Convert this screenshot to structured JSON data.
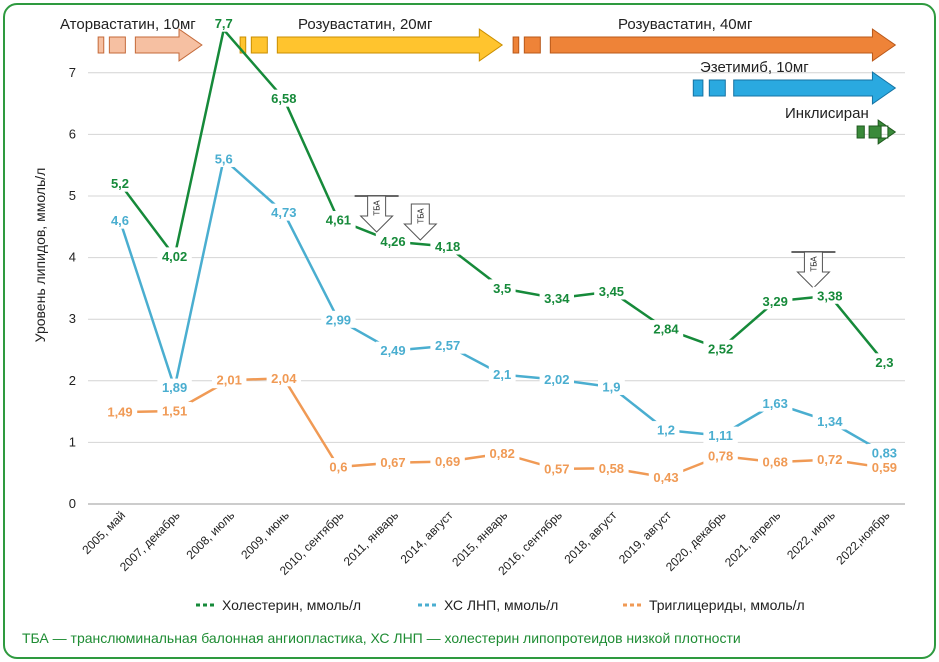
{
  "chart_data": {
    "type": "line",
    "ylabel": "Уровень липидов, ммоль/л",
    "ylim": [
      0,
      7.5
    ],
    "yticks": [
      0,
      1,
      2,
      3,
      4,
      5,
      6,
      7
    ],
    "grid": true,
    "legend_position": "bottom",
    "categories": [
      "2005, май",
      "2007, декабрь",
      "2008, июль",
      "2009, июнь",
      "2010, сентябрь",
      "2011, январь",
      "2014, август",
      "2015, январь",
      "2016, сентябрь",
      "2018, август",
      "2019, август",
      "2020, декабрь",
      "2021, апрель",
      "2022, июль",
      "2022,ноябрь"
    ],
    "series": [
      {
        "name": "Холестерин, ммоль/л",
        "color": "#168a3a",
        "points": [
          {
            "x": 0.0,
            "y": 5.2,
            "label": "5,2"
          },
          {
            "x": 1.0,
            "y": 4.02,
            "label": "4,02"
          },
          {
            "x": 1.9,
            "y": 7.7,
            "label": "7,7"
          },
          {
            "x": 3.0,
            "y": 6.58,
            "label": "6,58"
          },
          {
            "x": 4.0,
            "y": 4.61,
            "label": "4,61"
          },
          {
            "x": 5.0,
            "y": 4.26,
            "label": "4,26"
          },
          {
            "x": 6.0,
            "y": 4.18,
            "label": "4,18"
          },
          {
            "x": 7.0,
            "y": 3.5,
            "label": "3,5"
          },
          {
            "x": 8.0,
            "y": 3.34,
            "label": "3,34"
          },
          {
            "x": 9.0,
            "y": 3.45,
            "label": "3,45"
          },
          {
            "x": 10.0,
            "y": 2.84,
            "label": "2,84"
          },
          {
            "x": 11.0,
            "y": 2.52,
            "label": "2,52"
          },
          {
            "x": 12.0,
            "y": 3.29,
            "label": "3,29"
          },
          {
            "x": 13.0,
            "y": 3.38,
            "label": "3,38"
          },
          {
            "x": 14.0,
            "y": 2.3,
            "label": "2,3"
          }
        ]
      },
      {
        "name": "ХС ЛНП, ммоль/л",
        "color": "#4aaed0",
        "points": [
          {
            "x": 0.0,
            "y": 4.6,
            "label": "4,6"
          },
          {
            "x": 1.0,
            "y": 1.89,
            "label": "1,89"
          },
          {
            "x": 1.9,
            "y": 5.6,
            "label": "5,6"
          },
          {
            "x": 3.0,
            "y": 4.73,
            "label": "4,73"
          },
          {
            "x": 4.0,
            "y": 2.99,
            "label": "2,99"
          },
          {
            "x": 5.0,
            "y": 2.49,
            "label": "2,49"
          },
          {
            "x": 6.0,
            "y": 2.57,
            "label": "2,57"
          },
          {
            "x": 7.0,
            "y": 2.1,
            "label": "2,1"
          },
          {
            "x": 8.0,
            "y": 2.02,
            "label": "2,02"
          },
          {
            "x": 9.0,
            "y": 1.9,
            "label": "1,9"
          },
          {
            "x": 10.0,
            "y": 1.2,
            "label": "1,2"
          },
          {
            "x": 11.0,
            "y": 1.11,
            "label": "1,11"
          },
          {
            "x": 12.0,
            "y": 1.63,
            "label": "1,63"
          },
          {
            "x": 13.0,
            "y": 1.34,
            "label": "1,34"
          },
          {
            "x": 14.0,
            "y": 0.83,
            "label": "0,83"
          }
        ]
      },
      {
        "name": "Триглицериды, ммоль/л",
        "color": "#f09a55",
        "points": [
          {
            "x": 0.0,
            "y": 1.49,
            "label": "1,49"
          },
          {
            "x": 1.0,
            "y": 1.51,
            "label": "1,51"
          },
          {
            "x": 2.0,
            "y": 2.01,
            "label": "2,01"
          },
          {
            "x": 3.0,
            "y": 2.04,
            "label": "2,04"
          },
          {
            "x": 4.0,
            "y": 0.6,
            "label": "0,6"
          },
          {
            "x": 5.0,
            "y": 0.67,
            "label": "0,67"
          },
          {
            "x": 6.0,
            "y": 0.69,
            "label": "0,69"
          },
          {
            "x": 7.0,
            "y": 0.82,
            "label": "0,82"
          },
          {
            "x": 8.0,
            "y": 0.57,
            "label": "0,57"
          },
          {
            "x": 9.0,
            "y": 0.58,
            "label": "0,58"
          },
          {
            "x": 10.0,
            "y": 0.43,
            "label": "0,43"
          },
          {
            "x": 11.0,
            "y": 0.78,
            "label": "0,78"
          },
          {
            "x": 12.0,
            "y": 0.68,
            "label": "0,68"
          },
          {
            "x": 13.0,
            "y": 0.72,
            "label": "0,72"
          },
          {
            "x": 14.0,
            "y": 0.59,
            "label": "0,59"
          }
        ]
      }
    ],
    "therapy_arrows": [
      {
        "label": "Аторвастатин, 10мг",
        "fill": "#f6c0a2",
        "stroke": "#c46a3a",
        "x_start": -0.4,
        "x_end": 1.5,
        "row": 0
      },
      {
        "label": "Розувастатин, 20мг",
        "fill": "#ffc42e",
        "stroke": "#c98e00",
        "x_start": 2.2,
        "x_end": 7.0,
        "row": 0
      },
      {
        "label": "Розувастатин, 40мг",
        "fill": "#ee8338",
        "stroke": "#b9581a",
        "x_start": 7.2,
        "x_end": 14.2,
        "row": 0
      },
      {
        "label": "Эзетимиб, 10мг",
        "fill": "#2aa9e0",
        "stroke": "#1573a3",
        "x_start": 10.5,
        "x_end": 14.2,
        "row": 1
      },
      {
        "label": "Инклисиран",
        "fill": "#3a8a3a",
        "stroke": "#1f5a1f",
        "x_start": 13.5,
        "x_end": 14.2,
        "row": 2
      }
    ],
    "angioplasty_events": [
      {
        "label": "ТБА",
        "x": 4.7
      },
      {
        "label": "ТБА",
        "x": 5.5
      },
      {
        "label": "ТБА",
        "x": 12.7
      }
    ],
    "footnote": "ТБА — транслюминальная балонная ангиопластика, ХС ЛНП — холестерин липопротеидов низкой плотности"
  }
}
